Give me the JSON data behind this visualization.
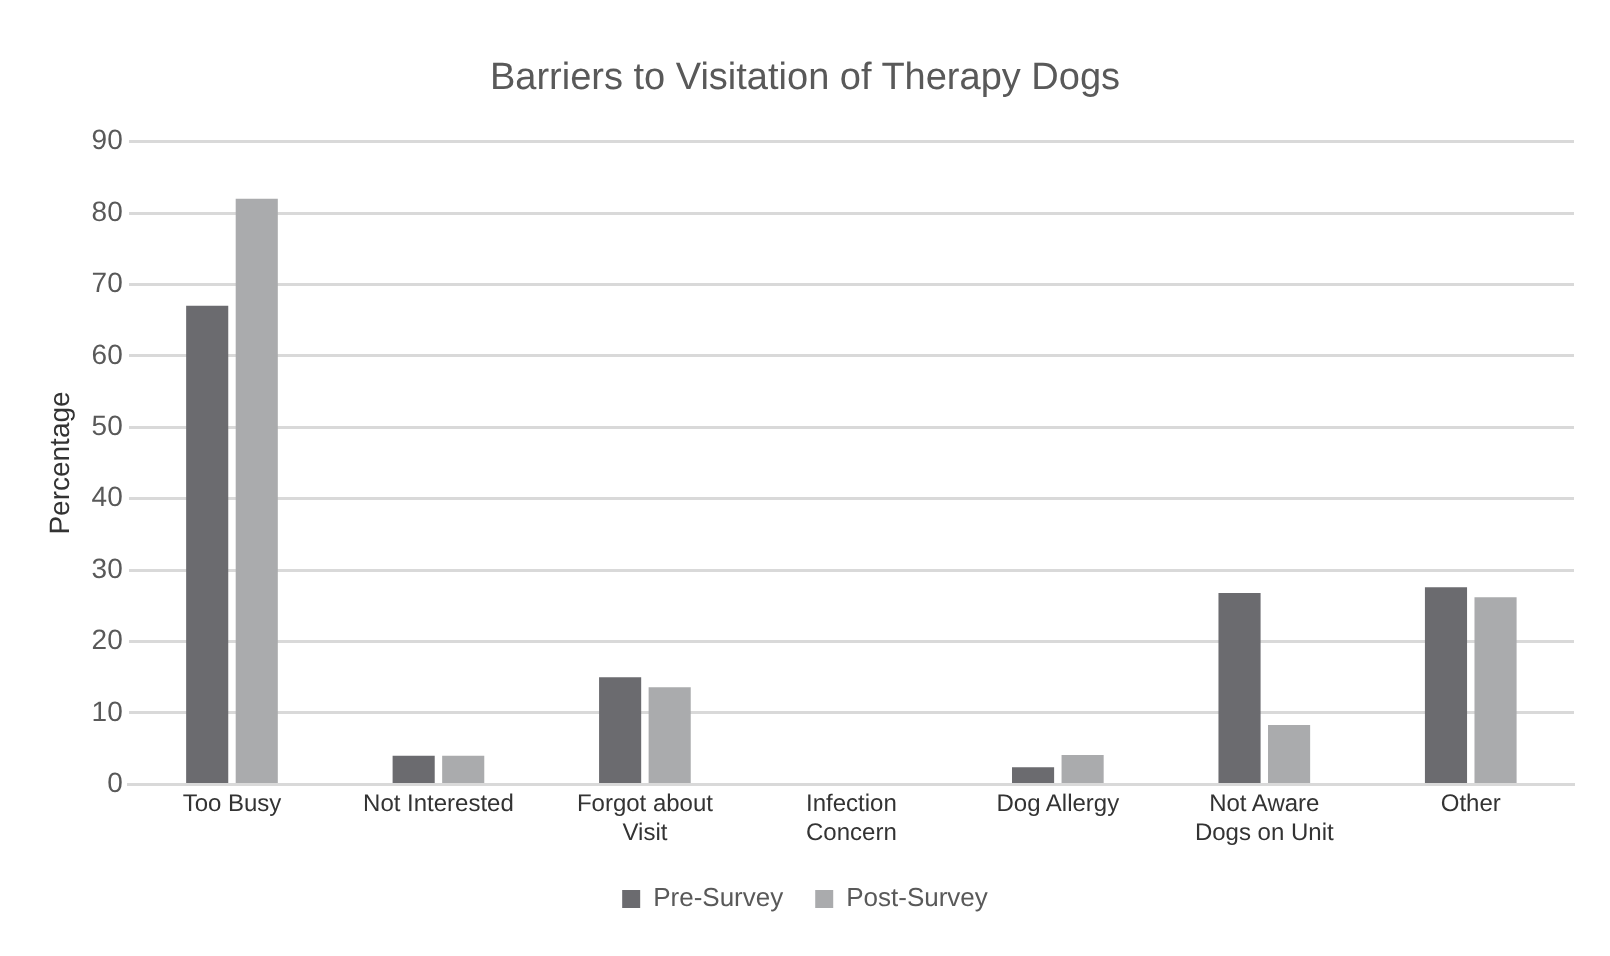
{
  "chart_data": {
    "type": "bar",
    "title": "Barriers to Visitation of Therapy Dogs",
    "ylabel": "Percentage",
    "categories": [
      "Too Busy",
      "Not Interested",
      "Forgot about Visit",
      "Infection Concern",
      "Dog Allergy",
      "Not Aware Dogs on Unit",
      "Other"
    ],
    "series": [
      {
        "name": "Pre-Survey",
        "color": "#6b6b6f",
        "values": [
          67,
          4,
          15,
          0,
          2.4,
          26.8,
          27.6
        ]
      },
      {
        "name": "Post-Survey",
        "color": "#aaabad",
        "values": [
          82,
          4,
          13.6,
          0,
          4.1,
          8.3,
          26.2
        ]
      }
    ],
    "ylim": [
      0,
      90
    ],
    "yticks": [
      0,
      10,
      20,
      30,
      40,
      50,
      60,
      70,
      80,
      90
    ],
    "grid": "y",
    "legend": "bottom"
  }
}
